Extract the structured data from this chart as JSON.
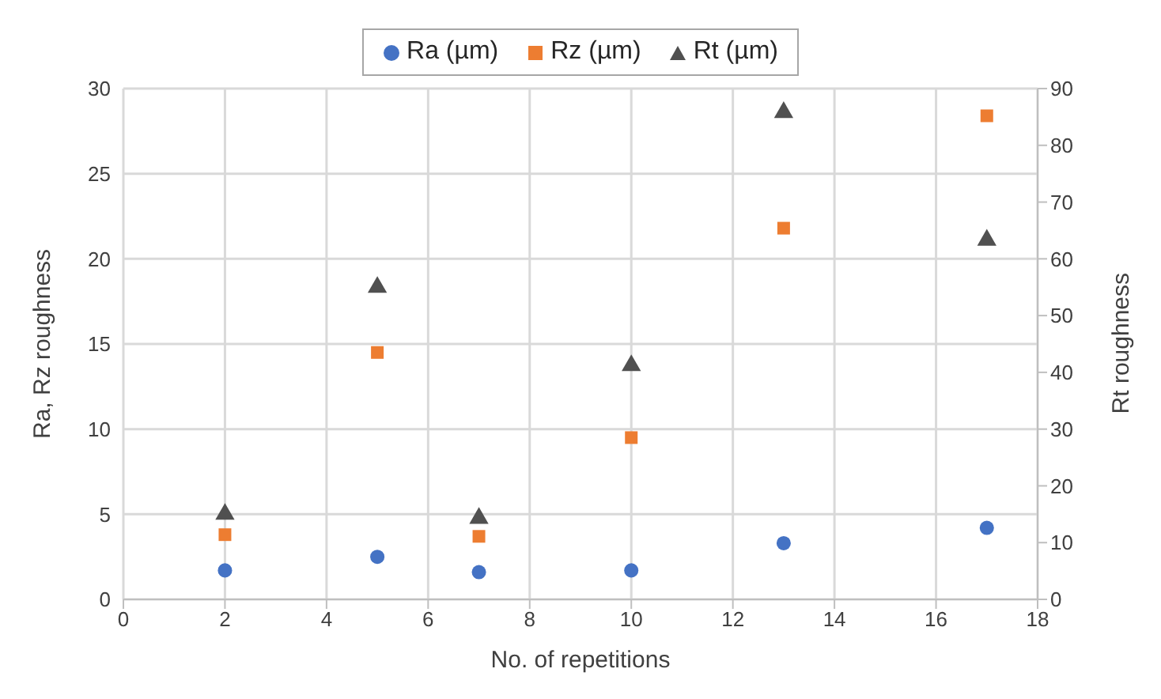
{
  "chart_data": {
    "type": "scatter",
    "xlabel": "No. of repetitions",
    "ylabel": "Ra, Rz roughness",
    "y2label": "Rt roughness",
    "x": [
      2,
      5,
      7,
      10,
      13,
      17
    ],
    "series": [
      {
        "name": "Ra (µm)",
        "color": "#4472c4",
        "marker": "circle",
        "values": [
          1.7,
          2.5,
          1.6,
          1.7,
          3.3,
          4.2
        ]
      },
      {
        "name": "Rz (µm)",
        "color": "#ed7d31",
        "marker": "square",
        "values": [
          3.8,
          14.5,
          3.7,
          9.5,
          21.8,
          28.4
        ]
      },
      {
        "name": "Rt (µm)",
        "color": "#505050",
        "marker": "triangle",
        "axis": "y2",
        "values": [
          15,
          55,
          14.3,
          41.2,
          85.8,
          63.3
        ]
      }
    ],
    "xlim": [
      0,
      18
    ],
    "xticks": [
      0,
      2,
      4,
      6,
      8,
      10,
      12,
      14,
      16,
      18
    ],
    "ylim": [
      0,
      30
    ],
    "yticks": [
      0,
      5,
      10,
      15,
      20,
      25,
      30
    ],
    "y2lim": [
      0,
      90
    ],
    "y2ticks": [
      0,
      10,
      20,
      30,
      40,
      50,
      60,
      70,
      80,
      90
    ],
    "grid": true,
    "legend": "top"
  }
}
